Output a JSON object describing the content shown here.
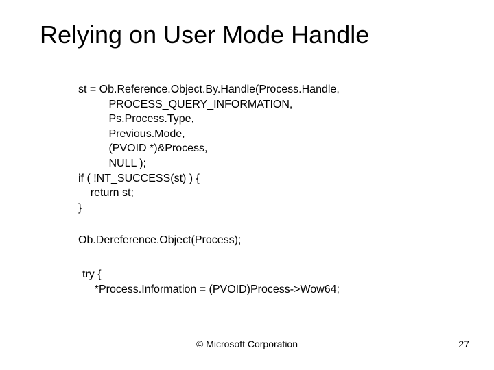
{
  "title": "Relying on User Mode Handle",
  "code": {
    "block1": "st = Ob.Reference.Object.By.Handle(Process.Handle,\n          PROCESS_QUERY_INFORMATION,\n          Ps.Process.Type,\n          Previous.Mode,\n          (PVOID *)&Process,\n          NULL );\nif ( !NT_SUCCESS(st) ) {\n    return st;\n}",
    "block2": "Ob.Dereference.Object(Process);",
    "block3": "try {\n    *Process.Information = (PVOID)Process->Wow64;"
  },
  "footer": {
    "copyright": "© Microsoft Corporation",
    "page": "27"
  },
  "style": {
    "background": "#ffffff",
    "text_color": "#000000",
    "title_fontsize": 36,
    "body_fontsize": 16,
    "footer_fontsize": 14
  }
}
